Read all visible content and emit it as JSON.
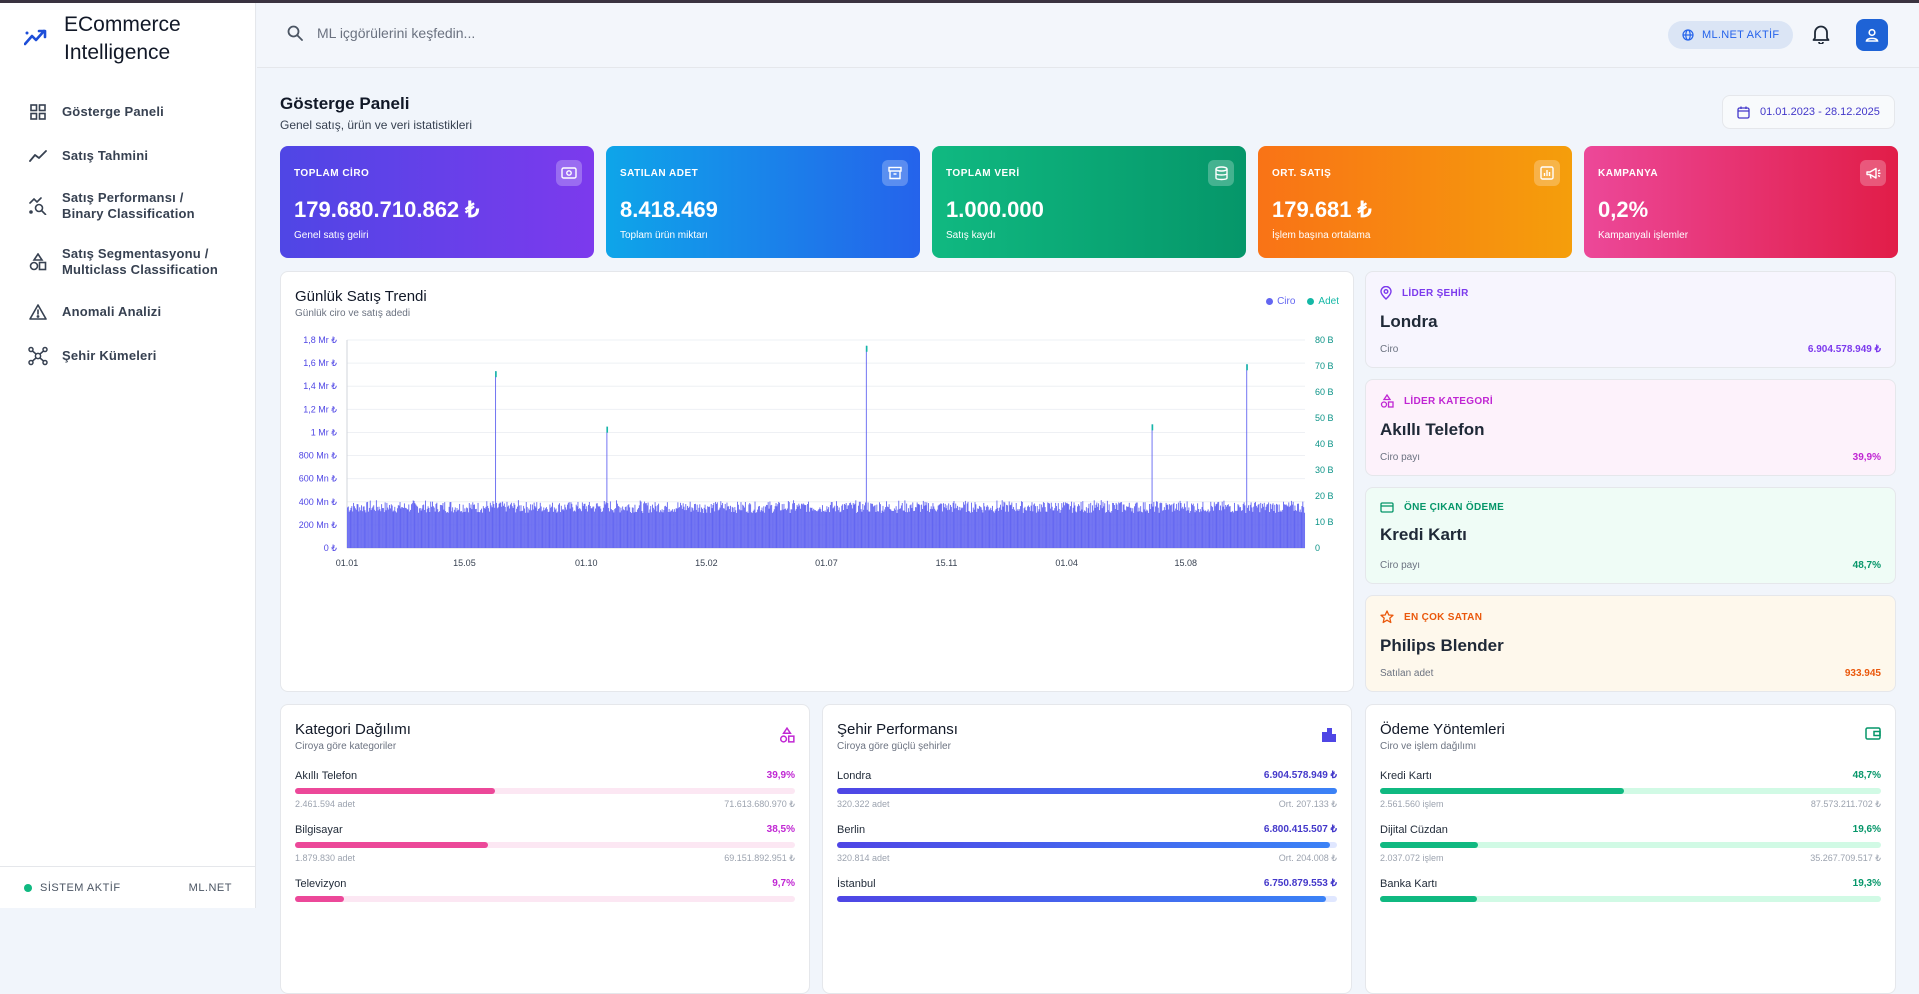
{
  "app": {
    "title": "ECommerce Intelligence"
  },
  "sidebar": {
    "items": [
      {
        "label": "Gösterge Paneli",
        "icon": "dashboard-grid-icon"
      },
      {
        "label": "Satış Tahmini",
        "icon": "trend-line-icon"
      },
      {
        "label": "Satış Performansı / Binary Classification",
        "icon": "scatter-search-icon"
      },
      {
        "label": "Satış Segmentasyonu / Multiclass Classification",
        "icon": "shapes-icon"
      },
      {
        "label": "Anomali Analizi",
        "icon": "warning-icon"
      },
      {
        "label": "Şehir Kümeleri",
        "icon": "cluster-icon"
      }
    ],
    "footer": {
      "status": "SİSTEM AKTİF",
      "right": "ML.NET"
    }
  },
  "topbar": {
    "search_placeholder": "ML içgörülerini keşfedin...",
    "badge": "ML.NET AKTİF"
  },
  "page": {
    "title": "Gösterge Paneli",
    "subtitle": "Genel satış, ürün ve veri istatistikleri",
    "date_range": "01.01.2023 - 28.12.2025"
  },
  "kpis": [
    {
      "label": "TOPLAM CİRO",
      "value": "179.680.710.862 ₺",
      "sub": "Genel satış geliri",
      "color_from": "#4f46e5",
      "color_to": "#7c3aed"
    },
    {
      "label": "SATILAN ADET",
      "value": "8.418.469",
      "sub": "Toplam ürün miktarı",
      "color_from": "#0ea5e9",
      "color_to": "#2563eb"
    },
    {
      "label": "TOPLAM VERİ",
      "value": "1.000.000",
      "sub": "Satış kaydı",
      "color_from": "#10b981",
      "color_to": "#059669"
    },
    {
      "label": "ORT. SATIŞ",
      "value": "179.681 ₺",
      "sub": "İşlem başına ortalama",
      "color_from": "#f97316",
      "color_to": "#f59e0b"
    },
    {
      "label": "KAMPANYA",
      "value": "0,2%",
      "sub": "Kampanyalı işlemler",
      "color_from": "#ec4899",
      "color_to": "#e11d48"
    }
  ],
  "trend": {
    "title": "Günlük Satış Trendi",
    "subtitle": "Günlük ciro ve satış adedi",
    "legend": [
      {
        "name": "Ciro",
        "color": "#6366f1"
      },
      {
        "name": "Adet",
        "color": "#14b8a6"
      }
    ]
  },
  "chart_data": {
    "type": "bar",
    "title": "Günlük Satış Trendi",
    "subtitle": "Günlük ciro ve satış adedi",
    "x_tick_labels": [
      "01.01",
      "15.05",
      "01.10",
      "15.02",
      "01.07",
      "15.11",
      "01.04",
      "15.08"
    ],
    "y_left_ticks": [
      "0 ₺",
      "200 Mn ₺",
      "400 Mn ₺",
      "600 Mn ₺",
      "800 Mn ₺",
      "1 Mr ₺",
      "1,2 Mr ₺",
      "1,4 Mr ₺",
      "1,6 Mr ₺",
      "1,8 Mr ₺"
    ],
    "y_right_ticks": [
      "0",
      "10 B",
      "20 B",
      "30 B",
      "40 B",
      "50 B",
      "60 B",
      "70 B",
      "80 B"
    ],
    "ylim_left": [
      0,
      1800000000
    ],
    "ylim_right": [
      0,
      80000
    ],
    "series": [
      {
        "name": "Ciro",
        "color": "#6366f1",
        "typical_range": [
          240000000,
          420000000
        ],
        "spikes": [
          {
            "date": "19.06.2023",
            "value": 1530000000
          },
          {
            "date": "24.10.2023",
            "value": 1050000000
          },
          {
            "date": "15.08.2024",
            "value": 1750000000
          },
          {
            "date": "07.07.2025",
            "value": 1070000000
          },
          {
            "date": "18.09.2025",
            "value": 1590000000
          }
        ]
      },
      {
        "name": "Adet",
        "color": "#14b8a6",
        "typical_range": [
          11000,
          19000
        ]
      }
    ],
    "grid": true,
    "legend_position": "top-right"
  },
  "highlights": [
    {
      "label": "LİDER ŞEHİR",
      "value": "Londra",
      "foot_label": "Ciro",
      "foot_value": "6.904.578.949 ₺",
      "color": "#7c3aed",
      "bg": "#f7f5fe",
      "icon": "map-pin-icon"
    },
    {
      "label": "LİDER KATEGORİ",
      "value": "Akıllı Telefon",
      "foot_label": "Ciro payı",
      "foot_value": "39,9%",
      "color": "#c026d3",
      "bg": "#fdf2fb",
      "icon": "shapes-icon"
    },
    {
      "label": "ÖNE ÇIKAN ÖDEME",
      "value": "Kredi Kartı",
      "foot_label": "Ciro payı",
      "foot_value": "48,7%",
      "color": "#059669",
      "bg": "#effcf6",
      "icon": "credit-card-icon"
    },
    {
      "label": "EN ÇOK SATAN",
      "value": "Philips Blender",
      "foot_label": "Satılan adet",
      "foot_value": "933.945",
      "color": "#ea580c",
      "bg": "#fef8ec",
      "icon": "star-icon"
    }
  ],
  "category_card": {
    "title": "Kategori Dağılımı",
    "subtitle": "Ciroya göre kategoriler",
    "rows": [
      {
        "name": "Akıllı Telefon",
        "pct": "39,9%",
        "left": "2.461.594 adet",
        "right": "71.613.680.970 ₺",
        "fill": 0.399
      },
      {
        "name": "Bilgisayar",
        "pct": "38,5%",
        "left": "1.879.830 adet",
        "right": "69.151.892.951 ₺",
        "fill": 0.385
      },
      {
        "name": "Televizyon",
        "pct": "9,7%",
        "left": "",
        "right": "",
        "fill": 0.097
      }
    ]
  },
  "city_card": {
    "title": "Şehir Performansı",
    "subtitle": "Ciroya göre güçlü şehirler",
    "rows": [
      {
        "name": "Londra",
        "pct": "6.904.578.949 ₺",
        "left": "320.322 adet",
        "right": "Ort. 207.133 ₺",
        "fill": 1.0
      },
      {
        "name": "Berlin",
        "pct": "6.800.415.507 ₺",
        "left": "320.814 adet",
        "right": "Ort. 204.008 ₺",
        "fill": 0.985
      },
      {
        "name": "İstanbul",
        "pct": "6.750.879.553 ₺",
        "left": "",
        "right": "",
        "fill": 0.978
      }
    ]
  },
  "payment_card": {
    "title": "Ödeme Yöntemleri",
    "subtitle": "Ciro ve işlem dağılımı",
    "rows": [
      {
        "name": "Kredi Kartı",
        "pct": "48,7%",
        "left": "2.561.560 işlem",
        "right": "87.573.211.702 ₺",
        "fill": 0.487
      },
      {
        "name": "Dijital Cüzdan",
        "pct": "19,6%",
        "left": "2.037.072 işlem",
        "right": "35.267.709.517 ₺",
        "fill": 0.196
      },
      {
        "name": "Banka Kartı",
        "pct": "19,3%",
        "left": "",
        "right": "",
        "fill": 0.193
      }
    ]
  }
}
